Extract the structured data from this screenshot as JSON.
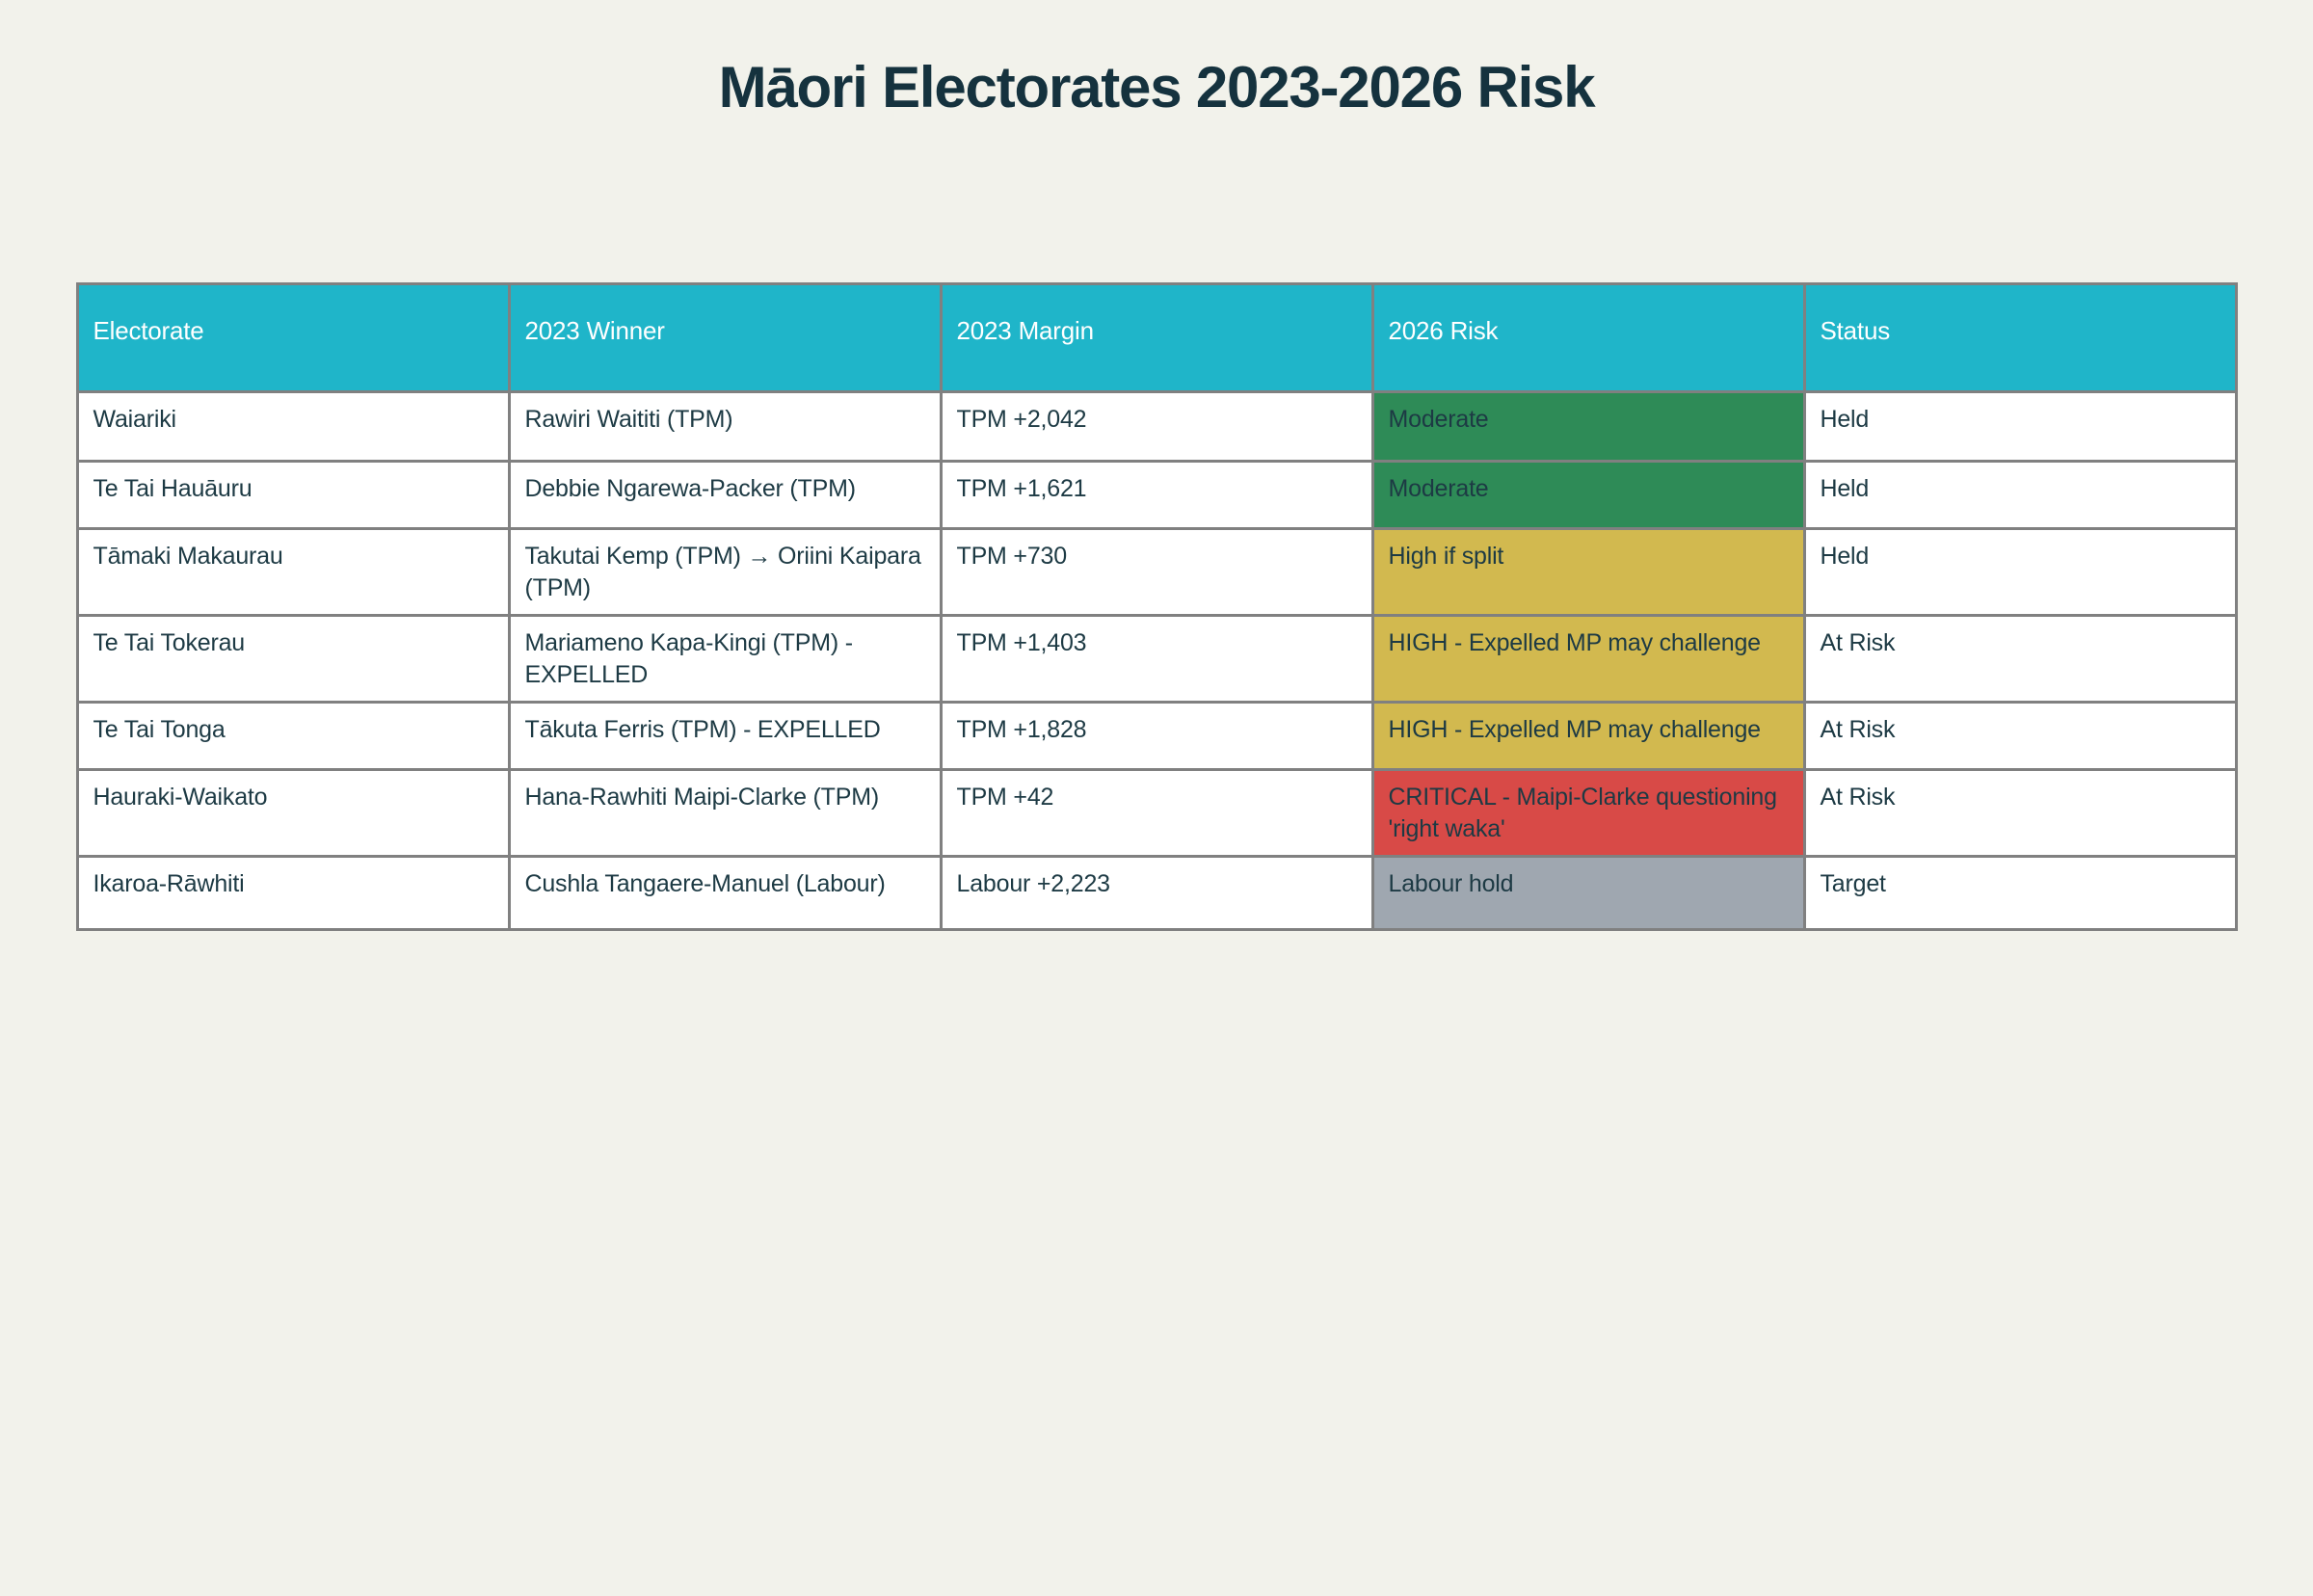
{
  "title": "Māori Electorates 2023-2026 Risk",
  "theme": {
    "page_bg": "#f2f2eb",
    "title_color": "#15323e",
    "header_bg": "#1fb5c9",
    "header_text": "#ffffff",
    "cell_bg": "#ffffff",
    "cell_text": "#1d3a44",
    "border": "#808080",
    "risk_moderate_green": "#2e8b57",
    "risk_high_yellow": "#d2b94f",
    "risk_critical_red": "#d84a47",
    "risk_neutral_gray": "#9fa7b0"
  },
  "chart_data": {
    "type": "table",
    "title": "Māori Electorates 2023-2026 Risk",
    "columns": [
      "Electorate",
      "2023 Winner",
      "2023 Margin",
      "2026 Risk",
      "Status"
    ],
    "rows": [
      {
        "electorate": "Waiariki",
        "winner": "Rawiri Waititi (TPM)",
        "margin": "TPM +2,042",
        "risk": "Moderate",
        "risk_color": "#2e8b57",
        "status": "Held"
      },
      {
        "electorate": "Te Tai Hauāuru",
        "winner": "Debbie Ngarewa-Packer (TPM)",
        "margin": "TPM +1,621",
        "risk": "Moderate",
        "risk_color": "#2e8b57",
        "status": "Held"
      },
      {
        "electorate": "Tāmaki Makaurau",
        "winner": "Takutai Kemp (TPM) → Oriini Kaipara (TPM)",
        "margin": "TPM +730",
        "risk": "High if split",
        "risk_color": "#d2b94f",
        "status": "Held"
      },
      {
        "electorate": "Te Tai Tokerau",
        "winner": "Mariameno Kapa-Kingi (TPM) - EXPELLED",
        "margin": "TPM +1,403",
        "risk": "HIGH - Expelled MP may challenge",
        "risk_color": "#d2b94f",
        "status": "At Risk"
      },
      {
        "electorate": "Te Tai Tonga",
        "winner": "Tākuta Ferris (TPM) - EXPELLED",
        "margin": "TPM +1,828",
        "risk": "HIGH - Expelled MP may challenge",
        "risk_color": "#d2b94f",
        "status": "At Risk"
      },
      {
        "electorate": "Hauraki-Waikato",
        "winner": "Hana-Rawhiti Maipi-Clarke (TPM)",
        "margin": "TPM +42",
        "risk": "CRITICAL - Maipi-Clarke questioning 'right waka'",
        "risk_color": "#d84a47",
        "status": "At Risk"
      },
      {
        "electorate": "Ikaroa-Rāwhiti",
        "winner": "Cushla Tangaere-Manuel (Labour)",
        "margin": "Labour +2,223",
        "risk": "Labour hold",
        "risk_color": "#9fa7b0",
        "status": "Target"
      }
    ]
  }
}
